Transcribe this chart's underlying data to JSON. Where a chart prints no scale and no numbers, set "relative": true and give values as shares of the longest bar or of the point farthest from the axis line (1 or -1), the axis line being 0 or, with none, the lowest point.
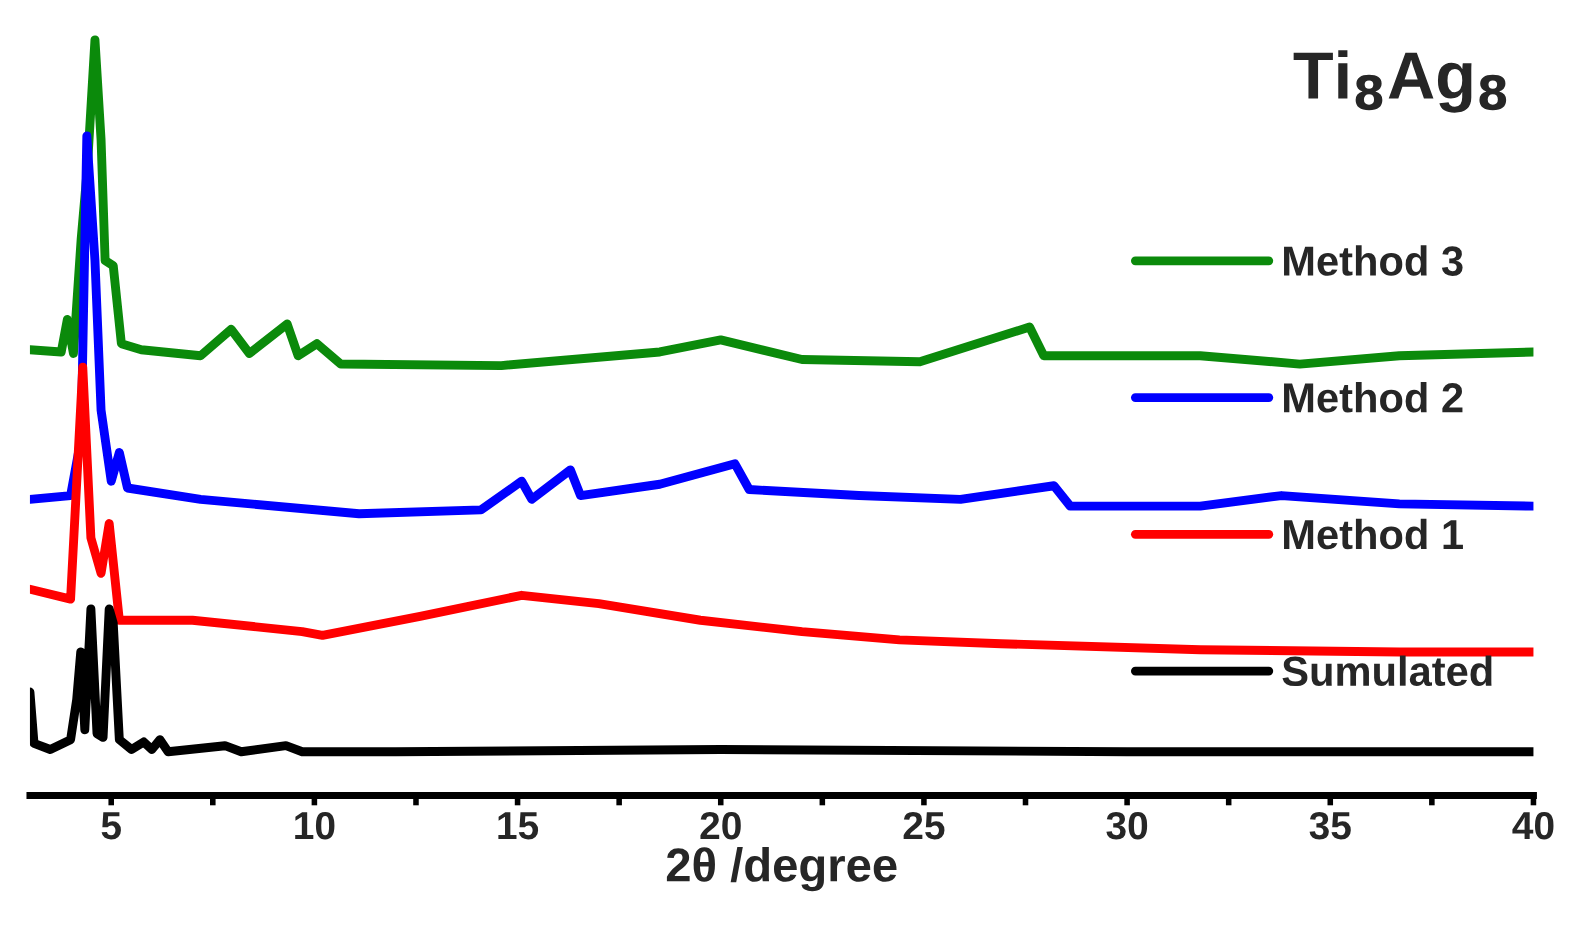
{
  "chart_data": {
    "type": "line",
    "relative": true,
    "xlabel": "2θ /degree",
    "annotations": [
      "Ti$_{8}$Ag$_{8}$"
    ],
    "xlim": [
      3,
      40
    ],
    "xticks": [
      5,
      {
        "value": 7.5,
        "label": null
      },
      10,
      {
        "value": 12.5,
        "label": null
      },
      15,
      {
        "value": 17.5,
        "label": null
      },
      20,
      {
        "value": 22.5,
        "label": null
      },
      25,
      {
        "value": 27.5,
        "label": null
      },
      30,
      {
        "value": 32.5,
        "label": null
      },
      35,
      {
        "value": 37.5,
        "label": null
      },
      40
    ],
    "grid": false,
    "legend": "right",
    "marker": "none",
    "line_style": "solid",
    "tick_labels": "x",
    "series": [
      {
        "name": "Method 3",
        "color": "#0b8a0b",
        "x": [
          3.0,
          3.77,
          3.92,
          4.07,
          4.26,
          4.41,
          4.6,
          4.75,
          4.85,
          5.05,
          5.25,
          5.74,
          7.2,
          7.95,
          8.4,
          9.33,
          9.6,
          10.06,
          10.65,
          14.6,
          18.5,
          20.0,
          22.0,
          24.9,
          27.6,
          27.95,
          31.8,
          34.25,
          36.7,
          40.0
        ],
        "values": [
          0.59,
          0.587,
          0.63,
          0.585,
          0.736,
          0.828,
          1.0,
          0.868,
          0.708,
          0.701,
          0.598,
          0.59,
          0.582,
          0.617,
          0.585,
          0.624,
          0.582,
          0.598,
          0.571,
          0.569,
          0.587,
          0.603,
          0.577,
          0.574,
          0.62,
          0.582,
          0.582,
          0.571,
          0.582,
          0.587
        ]
      },
      {
        "name": "Method 2",
        "color": "#0000ff",
        "x": [
          3.0,
          4.0,
          4.26,
          4.4,
          4.6,
          4.75,
          5.0,
          5.2,
          5.4,
          7.2,
          11.1,
          14.1,
          15.1,
          15.35,
          16.3,
          16.55,
          18.5,
          20.35,
          20.7,
          23.4,
          25.9,
          28.2,
          28.6,
          31.8,
          33.8,
          36.7,
          40.0
        ],
        "values": [
          0.392,
          0.397,
          0.473,
          0.873,
          0.708,
          0.51,
          0.416,
          0.454,
          0.407,
          0.392,
          0.373,
          0.378,
          0.416,
          0.392,
          0.431,
          0.397,
          0.412,
          0.439,
          0.405,
          0.397,
          0.392,
          0.41,
          0.383,
          0.383,
          0.397,
          0.386,
          0.383
        ]
      },
      {
        "name": "Method 1",
        "color": "#ff0000",
        "x": [
          3.0,
          4.0,
          4.3,
          4.5,
          4.75,
          4.95,
          5.2,
          7.0,
          9.7,
          10.2,
          12.6,
          15.1,
          17.0,
          19.5,
          22.0,
          24.4,
          26.9,
          31.8,
          36.7,
          40.0
        ],
        "values": [
          0.273,
          0.26,
          0.567,
          0.341,
          0.294,
          0.36,
          0.232,
          0.232,
          0.217,
          0.212,
          0.237,
          0.265,
          0.254,
          0.232,
          0.217,
          0.206,
          0.201,
          0.193,
          0.19,
          0.19
        ]
      },
      {
        "name": "Sumulated",
        "color": "#000000",
        "x": [
          3.0,
          3.1,
          3.5,
          4.0,
          4.15,
          4.25,
          4.35,
          4.5,
          4.65,
          4.8,
          4.95,
          5.05,
          5.2,
          5.5,
          5.8,
          6.0,
          6.2,
          6.4,
          7.8,
          8.2,
          9.3,
          9.7,
          12.0,
          20.0,
          30.0,
          40.0
        ],
        "values": [
          0.137,
          0.069,
          0.061,
          0.074,
          0.127,
          0.19,
          0.087,
          0.247,
          0.082,
          0.077,
          0.247,
          0.228,
          0.074,
          0.061,
          0.071,
          0.061,
          0.074,
          0.058,
          0.066,
          0.058,
          0.066,
          0.058,
          0.058,
          0.061,
          0.058,
          0.058
        ]
      }
    ]
  }
}
